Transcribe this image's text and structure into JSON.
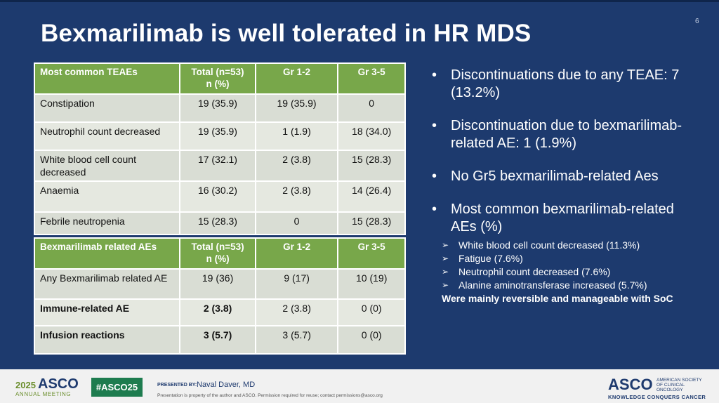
{
  "slide": {
    "title": "Bexmarilimab is well tolerated in HR MDS",
    "number": "6"
  },
  "teae_table": {
    "headers": [
      "Most common TEAEs",
      "Total (n=53)\nn (%)",
      "Gr 1-2",
      "Gr 3-5"
    ],
    "rows": [
      [
        "Constipation",
        "19 (35.9)",
        "19 (35.9)",
        "0"
      ],
      [
        "Neutrophil count decreased",
        "19 (35.9)",
        "1 (1.9)",
        "18 (34.0)"
      ],
      [
        "White blood cell count decreased",
        "17 (32.1)",
        "2 (3.8)",
        "15 (28.3)"
      ],
      [
        "Anaemia",
        "16 (30.2)",
        "2 (3.8)",
        "14 (26.4)"
      ],
      [
        "Febrile neutropenia",
        "15 (28.3)",
        "0",
        "15 (28.3)"
      ]
    ]
  },
  "related_table": {
    "headers": [
      "Bexmarilimab related AEs",
      "Total (n=53)\nn (%)",
      "Gr 1-2",
      "Gr 3-5"
    ],
    "rows": [
      [
        "Any Bexmarilimab related AE",
        "19 (36)",
        "9 (17)",
        "10 (19)"
      ],
      [
        "Immune-related AE",
        "2 (3.8)",
        "2 (3.8)",
        "0 (0)"
      ],
      [
        "Infusion reactions",
        "3 (5.7)",
        "3 (5.7)",
        "0 (0)"
      ]
    ]
  },
  "bullets": [
    "Discontinuations due to any TEAE: 7  (13.2%)",
    "Discontinuation due to bexmarilimab-related AE: 1 (1.9%)",
    "No Gr5 bexmarilimab-related Aes",
    "Most common bexmarilimab-related AEs (%)"
  ],
  "sub_bullets": [
    "White blood cell count decreased (11.3%)",
    "Fatigue (7.6%)",
    "Neutrophil count decreased (7.6%)",
    "Alanine aminotransferase increased (5.7%)"
  ],
  "note": "Were mainly reversible and manageable with SoC",
  "footer": {
    "year": "2025",
    "asco": "ASCO",
    "annual_meeting": "ANNUAL MEETING",
    "hashtag": "#ASCO25",
    "presented_by": "PRESENTED BY:",
    "presenter": "Naval Daver, MD",
    "disclaimer": "Presentation is property of the author and ASCO. Permission required for reuse; contact permissions@asco.org",
    "right_logo": "ASCO",
    "right_society": "AMERICAN SOCIETY OF CLINICAL ONCOLOGY",
    "right_tagline": "KNOWLEDGE CONQUERS CANCER"
  },
  "colors": {
    "background": "#1d3a6e",
    "table_header": "#78a74a",
    "table_body": "#d9ddd4",
    "hashtag": "#1e7c4f"
  }
}
